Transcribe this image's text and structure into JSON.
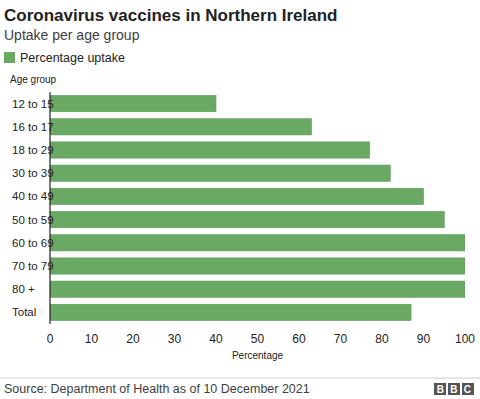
{
  "chart_data": {
    "type": "bar",
    "orientation": "horizontal",
    "title": "Coronavirus vaccines in Northern Ireland",
    "subtitle": "Uptake per age group",
    "ylabel": "Age group",
    "xlabel": "Percentage",
    "categories": [
      "12 to 15",
      "16 to 17",
      "18 to 29",
      "30 to 39",
      "40 to 49",
      "50 to 59",
      "60 to 69",
      "70 to 79",
      "80 +",
      "Total"
    ],
    "series": [
      {
        "name": "Percentage uptake",
        "color": "#6aa964",
        "values": [
          40,
          63,
          77,
          82,
          90,
          95,
          100,
          100,
          100,
          87
        ]
      }
    ],
    "xlim": [
      0,
      100
    ],
    "xticks": [
      0,
      10,
      20,
      30,
      40,
      50,
      60,
      70,
      80,
      90,
      100
    ],
    "grid": false,
    "legend": "top-left",
    "source": "Source: Department of Health as of 10 December 2021",
    "logo": "BBC"
  }
}
